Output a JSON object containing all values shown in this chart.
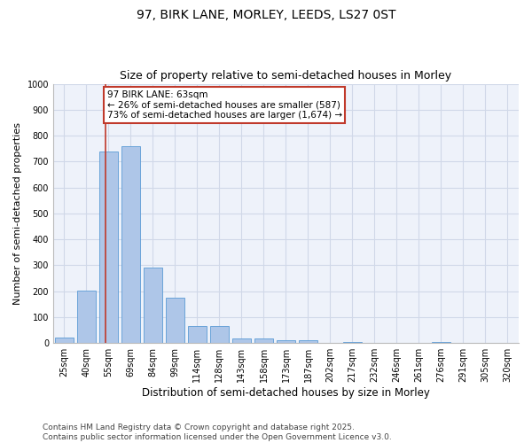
{
  "title_line1": "97, BIRK LANE, MORLEY, LEEDS, LS27 0ST",
  "title_line2": "Size of property relative to semi-detached houses in Morley",
  "xlabel": "Distribution of semi-detached houses by size in Morley",
  "ylabel": "Number of semi-detached properties",
  "categories": [
    "25sqm",
    "40sqm",
    "55sqm",
    "69sqm",
    "84sqm",
    "99sqm",
    "114sqm",
    "128sqm",
    "143sqm",
    "158sqm",
    "173sqm",
    "187sqm",
    "202sqm",
    "217sqm",
    "232sqm",
    "246sqm",
    "261sqm",
    "276sqm",
    "291sqm",
    "305sqm",
    "320sqm"
  ],
  "values": [
    22,
    203,
    740,
    759,
    292,
    176,
    65,
    65,
    18,
    17,
    12,
    11,
    0,
    5,
    0,
    0,
    0,
    5,
    0,
    0,
    0
  ],
  "bar_color": "#aec6e8",
  "bar_edge_color": "#5b9bd5",
  "annotation_line1": "97 BIRK LANE: 63sqm",
  "annotation_line2": "← 26% of semi-detached houses are smaller (587)",
  "annotation_line3": "73% of semi-detached houses are larger (1,674) →",
  "vline_color": "#c0392b",
  "annotation_box_edge_color": "#c0392b",
  "grid_color": "#d0d8e8",
  "background_color": "#eef2fa",
  "ylim": [
    0,
    1000
  ],
  "yticks": [
    0,
    100,
    200,
    300,
    400,
    500,
    600,
    700,
    800,
    900,
    1000
  ],
  "title_fontsize": 10,
  "subtitle_fontsize": 9,
  "tick_fontsize": 7,
  "ylabel_fontsize": 8,
  "xlabel_fontsize": 8.5,
  "annotation_fontsize": 7.5,
  "footer_fontsize": 6.5,
  "footer_line1": "Contains HM Land Registry data © Crown copyright and database right 2025.",
  "footer_line2": "Contains public sector information licensed under the Open Government Licence v3.0.",
  "vline_x": 1.85
}
